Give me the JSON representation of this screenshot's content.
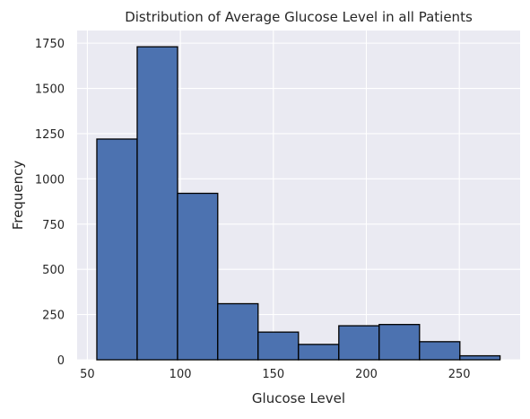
{
  "chart_data": {
    "type": "bar",
    "title": "Distribution of Average Glucose Level in all Patients",
    "xlabel": "Glucose Level",
    "ylabel": "Frequency",
    "x_ticks": [
      50,
      100,
      150,
      200,
      250
    ],
    "y_ticks": [
      0,
      250,
      500,
      750,
      1000,
      1250,
      1500,
      1750
    ],
    "x_tick_labels": [
      "50",
      "100",
      "150",
      "200",
      "250"
    ],
    "y_tick_labels": [
      "0",
      "250",
      "500",
      "750",
      "1000",
      "1250",
      "1500",
      "1750"
    ],
    "xlim": [
      44.5,
      282.7
    ],
    "ylim": [
      0,
      1820
    ],
    "grid": true,
    "bins": [
      {
        "x0": 55.1,
        "x1": 76.8,
        "value": 1220
      },
      {
        "x0": 76.8,
        "x1": 98.5,
        "value": 1730
      },
      {
        "x0": 98.5,
        "x1": 120.1,
        "value": 920
      },
      {
        "x0": 120.1,
        "x1": 141.8,
        "value": 310
      },
      {
        "x0": 141.8,
        "x1": 163.5,
        "value": 153
      },
      {
        "x0": 163.5,
        "x1": 185.2,
        "value": 85
      },
      {
        "x0": 185.2,
        "x1": 206.9,
        "value": 188
      },
      {
        "x0": 206.9,
        "x1": 228.6,
        "value": 195
      },
      {
        "x0": 228.6,
        "x1": 250.3,
        "value": 100
      },
      {
        "x0": 250.3,
        "x1": 271.9,
        "value": 22
      }
    ],
    "colors": {
      "bar_fill": "#4c72b0",
      "bar_edge": "#000000",
      "plot_background": "#eaeaf2",
      "grid": "#ffffff"
    }
  }
}
